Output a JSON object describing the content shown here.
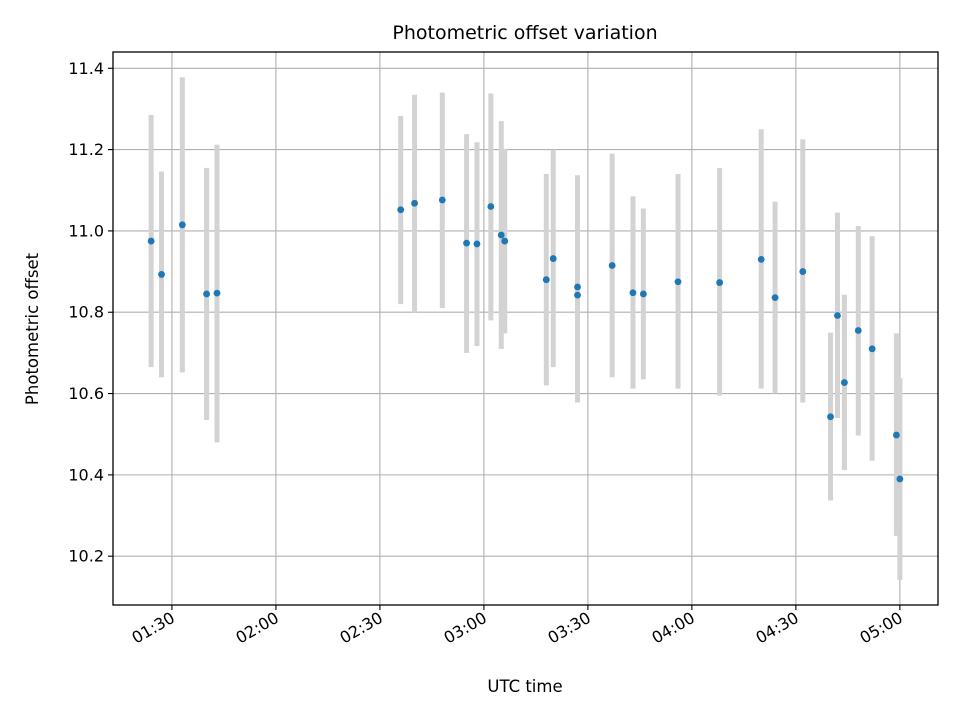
{
  "chart_data": {
    "type": "scatter",
    "title": "Photometric offset variation",
    "xlabel": "UTC time",
    "ylabel": "Photometric offset",
    "xlim": [
      "01:13",
      "05:11"
    ],
    "ylim": [
      10.08,
      11.44
    ],
    "x_ticks": [
      "01:30",
      "02:00",
      "02:30",
      "03:00",
      "03:30",
      "04:00",
      "04:30",
      "05:00"
    ],
    "y_ticks": [
      "10.2",
      "10.4",
      "10.6",
      "10.8",
      "11.0",
      "11.2",
      "11.4"
    ],
    "grid": true,
    "colors": {
      "point": "#1f77b4",
      "errorbar": "#d3d3d3",
      "grid": "#b0b0b0"
    },
    "series": [
      {
        "points": [
          {
            "x": "01:24",
            "y": 10.975,
            "ylow": 10.665,
            "yhigh": 11.285
          },
          {
            "x": "01:27",
            "y": 10.893,
            "ylow": 10.64,
            "yhigh": 11.146
          },
          {
            "x": "01:33",
            "y": 11.015,
            "ylow": 10.652,
            "yhigh": 11.378
          },
          {
            "x": "01:40",
            "y": 10.845,
            "ylow": 10.535,
            "yhigh": 11.155
          },
          {
            "x": "01:43",
            "y": 10.847,
            "ylow": 10.48,
            "yhigh": 11.212
          },
          {
            "x": "02:36",
            "y": 11.052,
            "ylow": 10.82,
            "yhigh": 11.283
          },
          {
            "x": "02:40",
            "y": 11.068,
            "ylow": 10.8,
            "yhigh": 11.335
          },
          {
            "x": "02:48",
            "y": 11.076,
            "ylow": 10.81,
            "yhigh": 11.34
          },
          {
            "x": "02:55",
            "y": 10.97,
            "ylow": 10.7,
            "yhigh": 11.238
          },
          {
            "x": "02:58",
            "y": 10.968,
            "ylow": 10.717,
            "yhigh": 11.218
          },
          {
            "x": "03:02",
            "y": 11.06,
            "ylow": 10.78,
            "yhigh": 11.338
          },
          {
            "x": "03:05",
            "y": 10.99,
            "ylow": 10.71,
            "yhigh": 11.27
          },
          {
            "x": "03:06",
            "y": 10.975,
            "ylow": 10.748,
            "yhigh": 11.202
          },
          {
            "x": "03:18",
            "y": 10.88,
            "ylow": 10.62,
            "yhigh": 11.14
          },
          {
            "x": "03:20",
            "y": 10.932,
            "ylow": 10.665,
            "yhigh": 11.2
          },
          {
            "x": "03:27",
            "y": 10.862,
            "ylow": 10.587,
            "yhigh": 11.137
          },
          {
            "x": "03:27",
            "y": 10.842,
            "ylow": 10.578,
            "yhigh": 11.106
          },
          {
            "x": "03:37",
            "y": 10.915,
            "ylow": 10.64,
            "yhigh": 11.19
          },
          {
            "x": "03:43",
            "y": 10.848,
            "ylow": 10.612,
            "yhigh": 11.085
          },
          {
            "x": "03:46",
            "y": 10.845,
            "ylow": 10.635,
            "yhigh": 11.055
          },
          {
            "x": "03:56",
            "y": 10.875,
            "ylow": 10.612,
            "yhigh": 11.14
          },
          {
            "x": "04:08",
            "y": 10.873,
            "ylow": 10.595,
            "yhigh": 11.155
          },
          {
            "x": "04:20",
            "y": 10.93,
            "ylow": 10.612,
            "yhigh": 11.25
          },
          {
            "x": "04:24",
            "y": 10.836,
            "ylow": 10.6,
            "yhigh": 11.072
          },
          {
            "x": "04:32",
            "y": 10.9,
            "ylow": 10.578,
            "yhigh": 11.225
          },
          {
            "x": "04:40",
            "y": 10.543,
            "ylow": 10.337,
            "yhigh": 10.75
          },
          {
            "x": "04:42",
            "y": 10.792,
            "ylow": 10.54,
            "yhigh": 11.045
          },
          {
            "x": "04:44",
            "y": 10.627,
            "ylow": 10.412,
            "yhigh": 10.843
          },
          {
            "x": "04:48",
            "y": 10.755,
            "ylow": 10.497,
            "yhigh": 11.012
          },
          {
            "x": "04:52",
            "y": 10.71,
            "ylow": 10.435,
            "yhigh": 10.987
          },
          {
            "x": "04:59",
            "y": 10.498,
            "ylow": 10.25,
            "yhigh": 10.748
          },
          {
            "x": "05:00",
            "y": 10.39,
            "ylow": 10.142,
            "yhigh": 10.638
          }
        ]
      }
    ]
  }
}
